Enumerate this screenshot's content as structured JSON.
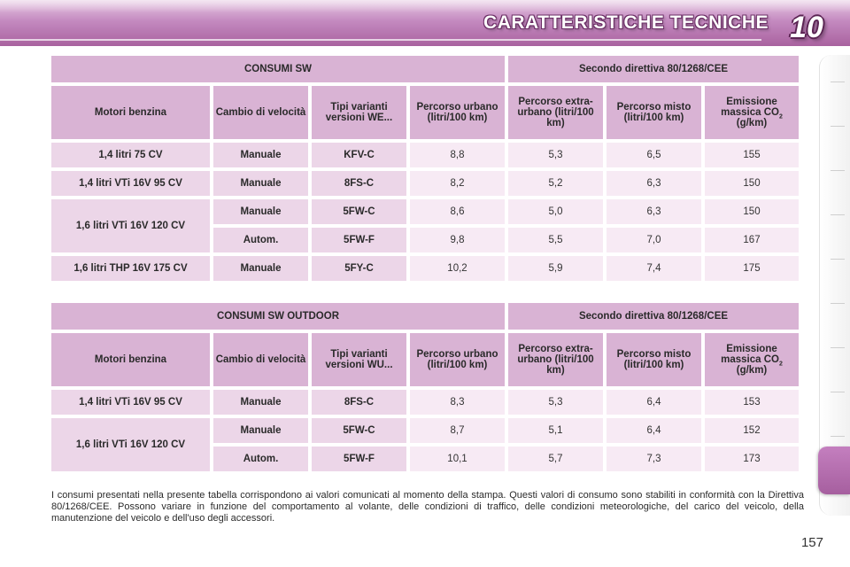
{
  "header": {
    "title": "CARATTERISTICHE TECNICHE",
    "chapter": "10"
  },
  "table1": {
    "title": "CONSUMI SW",
    "directive": "Secondo direttiva 80/1268/CEE",
    "columns": {
      "engine": "Motori benzina",
      "gearbox": "Cambio di velocità",
      "variants": "Tipi varianti versioni WE...",
      "urban": "Percorso urbano (litri/100 km)",
      "extra_urban": "Percorso extra-urbano (litri/100 km)",
      "mixed": "Percorso misto (litri/100 km)",
      "emission_prefix": "Emissione massica CO",
      "emission_sub": "2",
      "emission_suffix": "(g/km)"
    },
    "rows": [
      {
        "engine": "1,4 litri 75 CV",
        "gearbox": "Manuale",
        "variant": "KFV-C",
        "urban": "8,8",
        "extra_urban": "5,3",
        "mixed": "6,5",
        "co2": "155"
      },
      {
        "engine": "1,4 litri VTi 16V 95 CV",
        "gearbox": "Manuale",
        "variant": "8FS-C",
        "urban": "8,2",
        "extra_urban": "5,2",
        "mixed": "6,3",
        "co2": "150"
      },
      {
        "engine": "1,6 litri VTi 16V 120 CV",
        "gearbox": "Manuale",
        "variant": "5FW-C",
        "urban": "8,6",
        "extra_urban": "5,0",
        "mixed": "6,3",
        "co2": "150"
      },
      {
        "engine": "",
        "gearbox": "Autom.",
        "variant": "5FW-F",
        "urban": "9,8",
        "extra_urban": "5,5",
        "mixed": "7,0",
        "co2": "167"
      },
      {
        "engine": "1,6 litri THP 16V 175 CV",
        "gearbox": "Manuale",
        "variant": "5FY-C",
        "urban": "10,2",
        "extra_urban": "5,9",
        "mixed": "7,4",
        "co2": "175"
      }
    ]
  },
  "table2": {
    "title": "CONSUMI SW OUTDOOR",
    "directive": "Secondo direttiva 80/1268/CEE",
    "columns": {
      "engine": "Motori benzina",
      "gearbox": "Cambio di velocità",
      "variants": "Tipi varianti versioni WU...",
      "urban": "Percorso urbano (litri/100 km)",
      "extra_urban": "Percorso extra-urbano (litri/100 km)",
      "mixed": "Percorso misto (litri/100 km)",
      "emission_prefix": "Emissione massica CO",
      "emission_sub": "2",
      "emission_suffix": "(g/km)"
    },
    "rows": [
      {
        "engine": "1,4 litri VTi 16V 95 CV",
        "gearbox": "Manuale",
        "variant": "8FS-C",
        "urban": "8,3",
        "extra_urban": "5,3",
        "mixed": "6,4",
        "co2": "153"
      },
      {
        "engine": "1,6 litri VTi 16V 120 CV",
        "gearbox": "Manuale",
        "variant": "5FW-C",
        "urban": "8,7",
        "extra_urban": "5,1",
        "mixed": "6,4",
        "co2": "152"
      },
      {
        "engine": "",
        "gearbox": "Autom.",
        "variant": "5FW-F",
        "urban": "10,1",
        "extra_urban": "5,7",
        "mixed": "7,3",
        "co2": "173"
      }
    ]
  },
  "footnote": "I consumi presentati nella presente tabella corrispondono ai valori comunicati al momento della stampa. Questi valori di consumo sono stabiliti in conformità con la Direttiva 80/1268/CEE. Possono variare in funzione del comportamento al volante, delle condizioni di traffico, delle condizioni meteorologiche, del carico del veicolo, della manutenzione del veicolo e dell'uso degli accessori.",
  "page_number": "157",
  "colors": {
    "header_band": "#b978b2",
    "header_cell": "#d9b3d4",
    "label_cell": "#ecd6e8",
    "value_cell": "#f7eaf4"
  }
}
